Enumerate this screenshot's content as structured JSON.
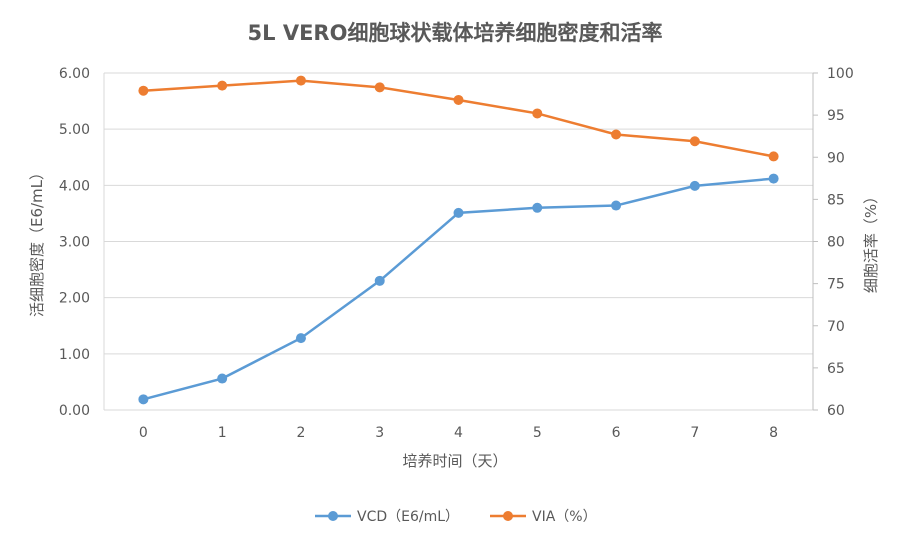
{
  "chart_data": {
    "type": "line",
    "title": "5L VERO细胞球状载体培养细胞密度和活率",
    "xlabel": "培养时间（天）",
    "ylabel": "活细胞密度（E6/mL）",
    "y2label": "细胞活率（%）",
    "x": [
      0,
      1,
      2,
      3,
      4,
      5,
      6,
      7,
      8
    ],
    "ylim": [
      0,
      6
    ],
    "y_ticks": [
      "0.00",
      "1.00",
      "2.00",
      "3.00",
      "4.00",
      "5.00",
      "6.00"
    ],
    "y2lim": [
      60,
      100
    ],
    "y2_ticks": [
      "60",
      "65",
      "70",
      "75",
      "80",
      "85",
      "90",
      "95",
      "100"
    ],
    "grid": true,
    "legend_position": "bottom",
    "series": [
      {
        "name": "VCD（E6/mL）",
        "axis": "left",
        "color": "#5B9BD5",
        "values": [
          0.19,
          0.56,
          1.28,
          2.3,
          3.51,
          3.6,
          3.64,
          3.99,
          4.12
        ]
      },
      {
        "name": "VIA（%）",
        "axis": "right",
        "color": "#ED7D31",
        "values": [
          97.9,
          98.5,
          99.1,
          98.3,
          96.8,
          95.2,
          92.7,
          91.9,
          90.1
        ]
      }
    ]
  }
}
